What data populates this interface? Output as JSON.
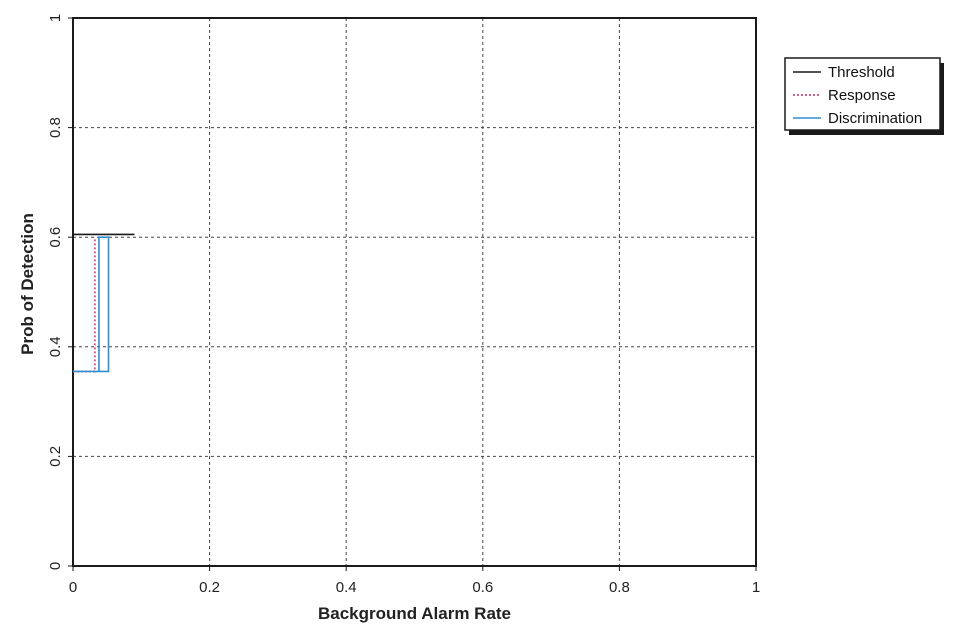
{
  "chart_data": {
    "type": "line",
    "title": "",
    "xlabel": "Background Alarm Rate",
    "ylabel": "Prob of Detection",
    "xlim": [
      0,
      1
    ],
    "ylim": [
      0,
      1
    ],
    "xticks": [
      "0",
      "0.2",
      "0.4",
      "0.6",
      "0.8",
      "1"
    ],
    "yticks": [
      "0",
      "0.2",
      "0.4",
      "0.6",
      "0.8",
      "1"
    ],
    "grid": true,
    "legend_position": "top-right",
    "series": [
      {
        "name": "Threshold",
        "color": "#1a1a1a",
        "style": "solid",
        "x": [
          0,
          0,
          0.09
        ],
        "y": [
          0,
          0.605,
          0.605
        ]
      },
      {
        "name": "Response",
        "color": "#d9608a",
        "style": "dotted",
        "x": [
          0,
          0.032,
          0.032,
          0.032
        ],
        "y": [
          0.355,
          0.355,
          0.4,
          0.6
        ]
      },
      {
        "name": "Discrimination",
        "color": "#2e8fd0",
        "style": "solid",
        "x": [
          0,
          0.052,
          0.052,
          0.038,
          0.038
        ],
        "y": [
          0.355,
          0.355,
          0.6,
          0.6,
          0.355
        ]
      }
    ]
  }
}
